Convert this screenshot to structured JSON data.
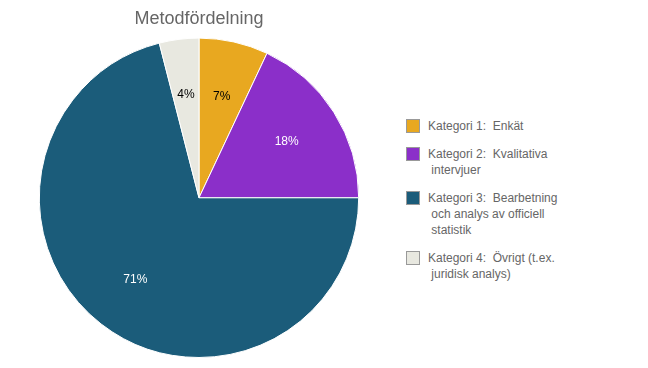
{
  "chart_data": {
    "type": "pie",
    "title": "Metodfördelning",
    "categories": [
      "Kategori 1:  Enkät",
      "Kategori 2:  Kvalitativa\n intervjuer",
      "Kategori 3:  Bearbetning\n och analys av officiell\n statistik",
      "Kategori 4:  Övrigt (t.ex.\n juridisk analys)"
    ],
    "values": [
      7,
      18,
      71,
      4
    ],
    "value_labels": [
      "7%",
      "18%",
      "71%",
      "4%"
    ],
    "colors": [
      "#E8A820",
      "#8B2FC9",
      "#1B5C7A",
      "#E8E8E0"
    ],
    "data_labels": true,
    "legend": "right"
  }
}
